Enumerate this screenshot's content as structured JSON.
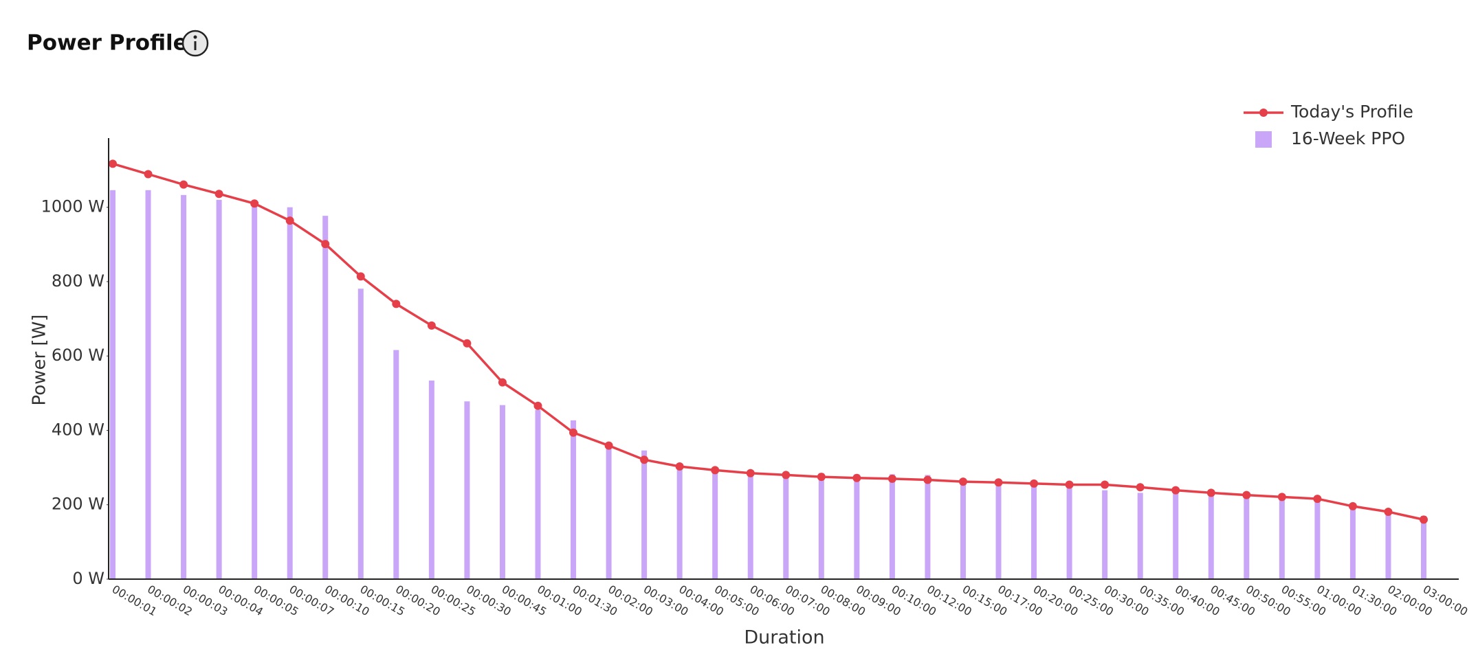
{
  "chart_data": {
    "type": "combo",
    "title": "Power Profile",
    "x_label": "Duration",
    "y_label": "Power [W]",
    "categories": [
      "00:00:01",
      "00:00:02",
      "00:00:03",
      "00:00:04",
      "00:00:05",
      "00:00:07",
      "00:00:10",
      "00:00:15",
      "00:00:20",
      "00:00:25",
      "00:00:30",
      "00:00:45",
      "00:01:00",
      "00:01:30",
      "00:02:00",
      "00:03:00",
      "00:04:00",
      "00:05:00",
      "00:06:00",
      "00:07:00",
      "00:08:00",
      "00:09:00",
      "00:10:00",
      "00:12:00",
      "00:15:00",
      "00:17:00",
      "00:20:00",
      "00:25:00",
      "00:30:00",
      "00:35:00",
      "00:40:00",
      "00:45:00",
      "00:50:00",
      "00:55:00",
      "01:00:00",
      "01:30:00",
      "02:00:00",
      "03:00:00"
    ],
    "series": [
      {
        "name": "Today's Profile",
        "type": "line",
        "color": "#e5404a",
        "values": [
          1117,
          1089,
          1061,
          1036,
          1010,
          964,
          901,
          814,
          740,
          682,
          634,
          529,
          466,
          394,
          359,
          321,
          303,
          293,
          285,
          280,
          275,
          272,
          270,
          267,
          262,
          260,
          257,
          254,
          254,
          247,
          239,
          232,
          226,
          221,
          216,
          196,
          181,
          160
        ]
      },
      {
        "name": "16-Week PPO",
        "type": "bar",
        "color": "#c9a6f7",
        "values": [
          1046,
          1046,
          1033,
          1020,
          1008,
          1000,
          977,
          781,
          616,
          534,
          478,
          468,
          455,
          427,
          359,
          346,
          310,
          293,
          282,
          285,
          285,
          282,
          282,
          280,
          267,
          262,
          254,
          254,
          239,
          232,
          247,
          237,
          232,
          224,
          219,
          198,
          178,
          170
        ]
      }
    ],
    "ylim": [
      0,
      1186
    ],
    "yticks": [
      {
        "value": 0,
        "label": "0 W"
      },
      {
        "value": 200,
        "label": "200 W"
      },
      {
        "value": 400,
        "label": "400 W"
      },
      {
        "value": 600,
        "label": "600 W"
      },
      {
        "value": 800,
        "label": "800 W"
      },
      {
        "value": 1000,
        "label": "1000 W"
      }
    ],
    "legend": "top-right"
  }
}
